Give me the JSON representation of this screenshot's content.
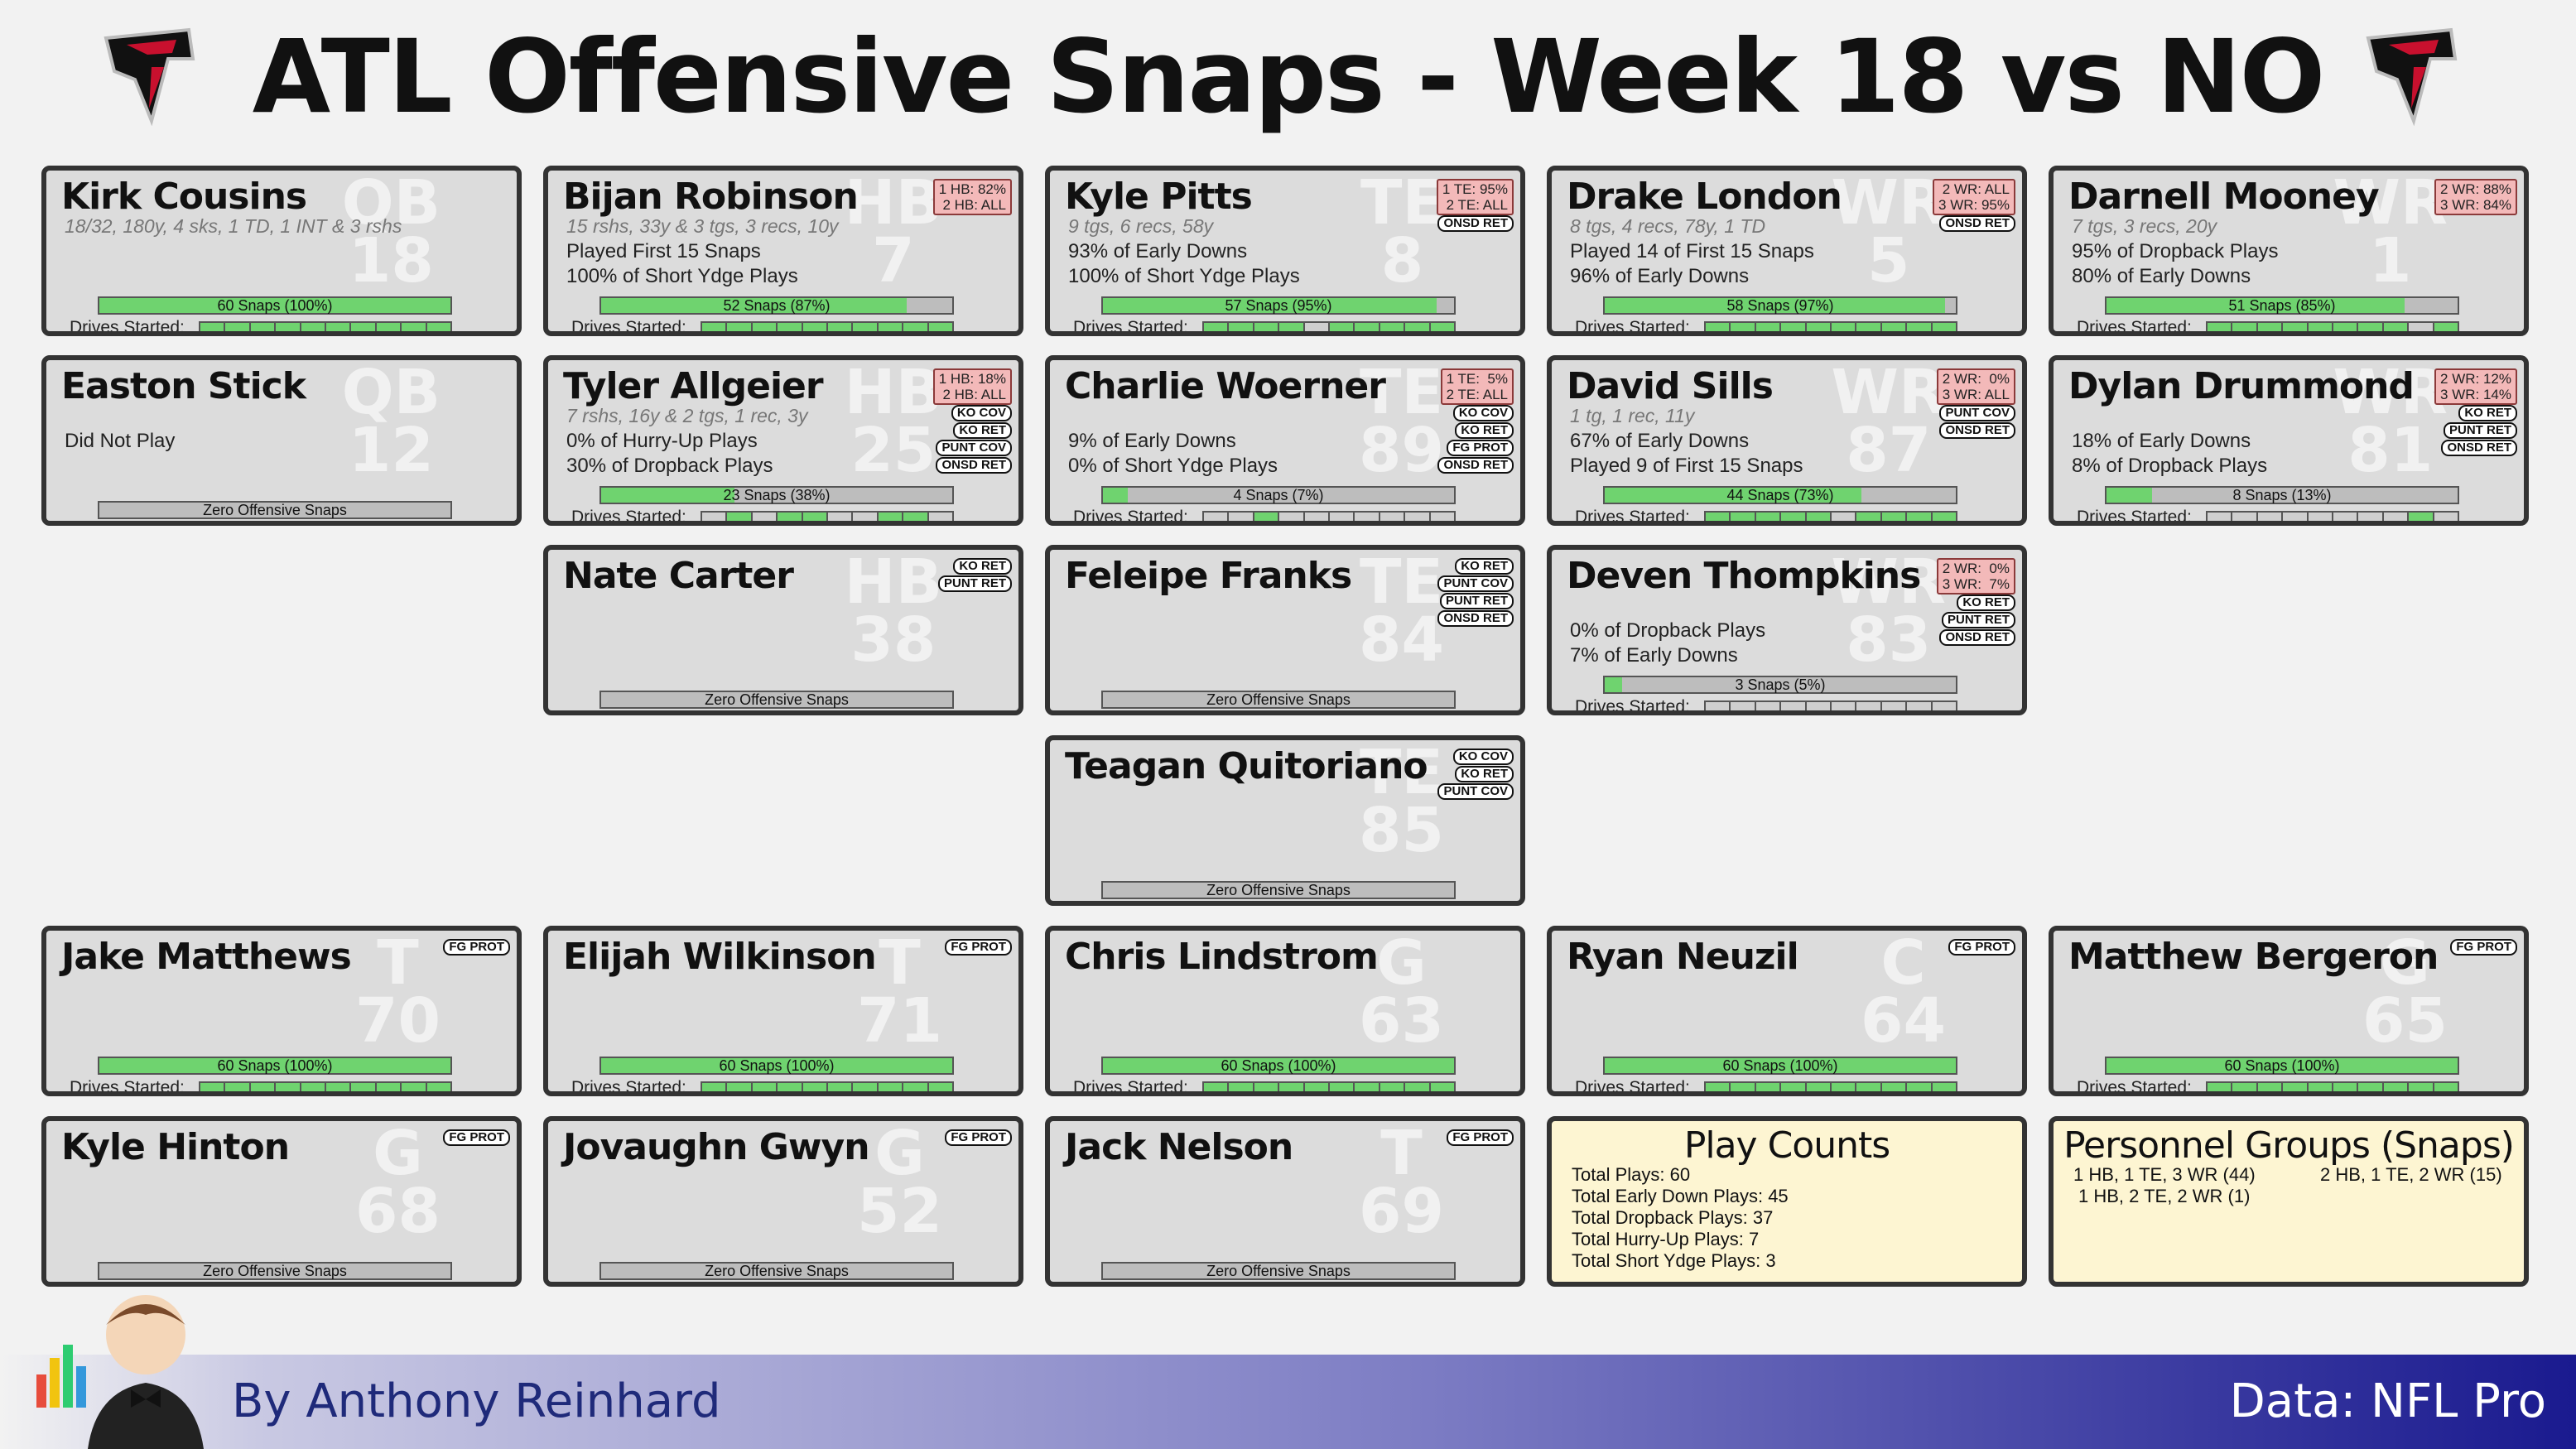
{
  "title": "ATL Offensive Snaps - Week 18 vs NO",
  "drives_label": "Drives Started:",
  "footer": {
    "byline": "By Anthony Reinhard",
    "source": "Data: NFL Pro"
  },
  "players": [
    {
      "name": "Kirk Cousins",
      "pos": "QB",
      "num": "18",
      "stats": "18/32, 180y, 4 sks, 1 TD, 1 INT & 3 rshs",
      "lines": [
        "",
        ""
      ],
      "snaps": "60 Snaps (100%)",
      "snap_pct": 100,
      "drives": [
        1,
        1,
        1,
        1,
        1,
        1,
        1,
        1,
        1,
        1
      ],
      "pct": "",
      "badges": []
    },
    {
      "name": "Bijan Robinson",
      "pos": "HB",
      "num": "7",
      "stats": "15 rshs, 33y & 3 tgs, 3 recs, 10y",
      "lines": [
        "Played First 15 Snaps",
        "100% of Short Ydge Plays"
      ],
      "snaps": "52 Snaps (87%)",
      "snap_pct": 87,
      "drives": [
        1,
        1,
        1,
        1,
        1,
        1,
        1,
        1,
        1,
        1
      ],
      "pct": "1 HB: 82%\n2 HB: ALL",
      "badges": []
    },
    {
      "name": "Kyle Pitts",
      "pos": "TE",
      "num": "8",
      "stats": "9 tgs, 6 recs, 58y",
      "lines": [
        "93% of Early Downs",
        "100% of Short Ydge Plays"
      ],
      "snaps": "57 Snaps (95%)",
      "snap_pct": 95,
      "drives": [
        1,
        1,
        1,
        1,
        0,
        1,
        1,
        1,
        1,
        1
      ],
      "pct": "1 TE: 95%\n2 TE: ALL",
      "badges": [
        "ONSD RET"
      ]
    },
    {
      "name": "Drake London",
      "pos": "WR",
      "num": "5",
      "stats": "8 tgs, 4 recs, 78y, 1 TD",
      "lines": [
        "Played 14 of First 15 Snaps",
        "96% of Early Downs"
      ],
      "snaps": "58 Snaps (97%)",
      "snap_pct": 97,
      "drives": [
        1,
        1,
        1,
        1,
        1,
        1,
        1,
        1,
        1,
        1
      ],
      "pct": "2 WR: ALL\n3 WR: 95%",
      "badges": [
        "ONSD RET"
      ]
    },
    {
      "name": "Darnell Mooney",
      "pos": "WR",
      "num": "1",
      "stats": "7 tgs, 3 recs, 20y",
      "lines": [
        "95% of Dropback Plays",
        "80% of Early Downs"
      ],
      "snaps": "51 Snaps (85%)",
      "snap_pct": 85,
      "drives": [
        1,
        1,
        1,
        1,
        1,
        1,
        1,
        1,
        0,
        1
      ],
      "pct": "2 WR: 88%\n3 WR: 84%",
      "badges": []
    },
    {
      "name": "Easton Stick",
      "pos": "QB",
      "num": "12",
      "stats": "",
      "lines": [
        "Did Not Play",
        ""
      ],
      "snaps": "Zero Offensive Snaps",
      "snap_pct": 0,
      "drives": null,
      "pct": "",
      "badges": []
    },
    {
      "name": "Tyler Allgeier",
      "pos": "HB",
      "num": "25",
      "stats": "7 rshs, 16y & 2 tgs, 1 rec, 3y",
      "lines": [
        "0% of Hurry-Up Plays",
        "30% of Dropback Plays"
      ],
      "snaps": "23 Snaps (38%)",
      "snap_pct": 38,
      "drives": [
        0,
        1,
        0,
        1,
        1,
        0,
        0,
        1,
        1,
        0
      ],
      "pct": "1 HB: 18%\n2 HB: ALL",
      "badges": [
        "KO COV",
        "KO RET",
        "PUNT COV",
        "ONSD RET"
      ]
    },
    {
      "name": "Charlie Woerner",
      "pos": "TE",
      "num": "89",
      "stats": "",
      "lines": [
        "9% of Early Downs",
        "0% of Short Ydge Plays"
      ],
      "snaps": "4 Snaps (7%)",
      "snap_pct": 7,
      "drives": [
        0,
        0,
        1,
        0,
        0,
        0,
        0,
        0,
        0,
        0
      ],
      "pct": "1 TE:  5%\n2 TE: ALL",
      "badges": [
        "KO COV",
        "KO RET",
        "FG PROT",
        "ONSD RET"
      ]
    },
    {
      "name": "David Sills",
      "pos": "WR",
      "num": "87",
      "stats": "1 tg, 1 rec, 11y",
      "lines": [
        "67% of Early Downs",
        "Played 9 of First 15 Snaps"
      ],
      "snaps": "44 Snaps (73%)",
      "snap_pct": 73,
      "drives": [
        1,
        1,
        1,
        1,
        1,
        0,
        1,
        1,
        1,
        1
      ],
      "pct": "2 WR:  0%\n3 WR: ALL",
      "badges": [
        "PUNT COV",
        "ONSD RET"
      ]
    },
    {
      "name": "Dylan Drummond",
      "pos": "WR",
      "num": "81",
      "stats": "",
      "lines": [
        "18% of Early Downs",
        "8% of Dropback Plays"
      ],
      "snaps": "8 Snaps (13%)",
      "snap_pct": 13,
      "drives": [
        0,
        0,
        0,
        0,
        0,
        0,
        0,
        0,
        1,
        0
      ],
      "pct": "2 WR: 12%\n3 WR: 14%",
      "badges": [
        "KO RET",
        "PUNT RET",
        "ONSD RET"
      ]
    },
    {
      "name": "Nate Carter",
      "pos": "HB",
      "num": "38",
      "stats": "",
      "lines": [
        "",
        ""
      ],
      "snaps": "Zero Offensive Snaps",
      "snap_pct": 0,
      "drives": null,
      "pct": "",
      "badges": [
        "KO RET",
        "PUNT RET"
      ]
    },
    {
      "name": "Feleipe Franks",
      "pos": "TE",
      "num": "84",
      "stats": "",
      "lines": [
        "",
        ""
      ],
      "snaps": "Zero Offensive Snaps",
      "snap_pct": 0,
      "drives": null,
      "pct": "",
      "badges": [
        "KO RET",
        "PUNT COV",
        "PUNT RET",
        "ONSD RET"
      ]
    },
    {
      "name": "Deven Thompkins",
      "pos": "WR",
      "num": "83",
      "stats": "",
      "lines": [
        "0% of Dropback Plays",
        "7% of Early Downs"
      ],
      "snaps": "3 Snaps (5%)",
      "snap_pct": 5,
      "drives": [
        0,
        0,
        0,
        0,
        0,
        0,
        0,
        0,
        0,
        0
      ],
      "pct": "2 WR:  0%\n3 WR:  7%",
      "badges": [
        "KO RET",
        "PUNT RET",
        "ONSD RET"
      ]
    },
    {
      "name": "Teagan Quitoriano",
      "pos": "TE",
      "num": "85",
      "stats": "",
      "lines": [
        "",
        ""
      ],
      "snaps": "Zero Offensive Snaps",
      "snap_pct": 0,
      "drives": null,
      "pct": "",
      "badges": [
        "KO COV",
        "KO RET",
        "PUNT COV"
      ]
    },
    {
      "name": "Jake Matthews",
      "pos": "T",
      "num": "70",
      "stats": "",
      "lines": [
        "",
        ""
      ],
      "snaps": "60 Snaps (100%)",
      "snap_pct": 100,
      "drives": [
        1,
        1,
        1,
        1,
        1,
        1,
        1,
        1,
        1,
        1
      ],
      "pct": "",
      "badges": [
        "FG PROT"
      ]
    },
    {
      "name": "Elijah Wilkinson",
      "pos": "T",
      "num": "71",
      "stats": "",
      "lines": [
        "",
        ""
      ],
      "snaps": "60 Snaps (100%)",
      "snap_pct": 100,
      "drives": [
        1,
        1,
        1,
        1,
        1,
        1,
        1,
        1,
        1,
        1
      ],
      "pct": "",
      "badges": [
        "FG PROT"
      ]
    },
    {
      "name": "Chris Lindstrom",
      "pos": "G",
      "num": "63",
      "stats": "",
      "lines": [
        "",
        ""
      ],
      "snaps": "60 Snaps (100%)",
      "snap_pct": 100,
      "drives": [
        1,
        1,
        1,
        1,
        1,
        1,
        1,
        1,
        1,
        1
      ],
      "pct": "",
      "badges": []
    },
    {
      "name": "Ryan Neuzil",
      "pos": "C",
      "num": "64",
      "stats": "",
      "lines": [
        "",
        ""
      ],
      "snaps": "60 Snaps (100%)",
      "snap_pct": 100,
      "drives": [
        1,
        1,
        1,
        1,
        1,
        1,
        1,
        1,
        1,
        1
      ],
      "pct": "",
      "badges": [
        "FG PROT"
      ]
    },
    {
      "name": "Matthew Bergeron",
      "pos": "G",
      "num": "65",
      "stats": "",
      "lines": [
        "",
        ""
      ],
      "snaps": "60 Snaps (100%)",
      "snap_pct": 100,
      "drives": [
        1,
        1,
        1,
        1,
        1,
        1,
        1,
        1,
        1,
        1
      ],
      "pct": "",
      "badges": [
        "FG PROT"
      ]
    },
    {
      "name": "Kyle Hinton",
      "pos": "G",
      "num": "68",
      "stats": "",
      "lines": [
        "",
        ""
      ],
      "snaps": "Zero Offensive Snaps",
      "snap_pct": 0,
      "drives": null,
      "pct": "",
      "badges": [
        "FG PROT"
      ]
    },
    {
      "name": "Jovaughn Gwyn",
      "pos": "G",
      "num": "52",
      "stats": "",
      "lines": [
        "",
        ""
      ],
      "snaps": "Zero Offensive Snaps",
      "snap_pct": 0,
      "drives": null,
      "pct": "",
      "badges": [
        "FG PROT"
      ]
    },
    {
      "name": "Jack Nelson",
      "pos": "T",
      "num": "69",
      "stats": "",
      "lines": [
        "",
        ""
      ],
      "snaps": "Zero Offensive Snaps",
      "snap_pct": 0,
      "drives": null,
      "pct": "",
      "badges": [
        "FG PROT"
      ]
    }
  ],
  "play_counts": {
    "title": "Play Counts",
    "lines": [
      "Total Plays: 60",
      "Total Early Down Plays: 45",
      "Total Dropback Plays: 37",
      "Total Hurry-Up Plays: 7",
      "Total Short Ydge Plays: 3"
    ]
  },
  "personnel": {
    "title": "Personnel Groups (Snaps)",
    "items": [
      "1 HB, 1 TE, 3 WR (44)",
      "2 HB, 1 TE, 2 WR (15)",
      "1 HB, 2 TE, 2 WR (1)"
    ]
  },
  "colors": {
    "snap_fill": "#6fd36f",
    "card_bg": "#dcdcdc",
    "summary_bg": "#fdf5d2",
    "pct_bg": "#f3b9b9",
    "byline": "#1f2a7a"
  }
}
